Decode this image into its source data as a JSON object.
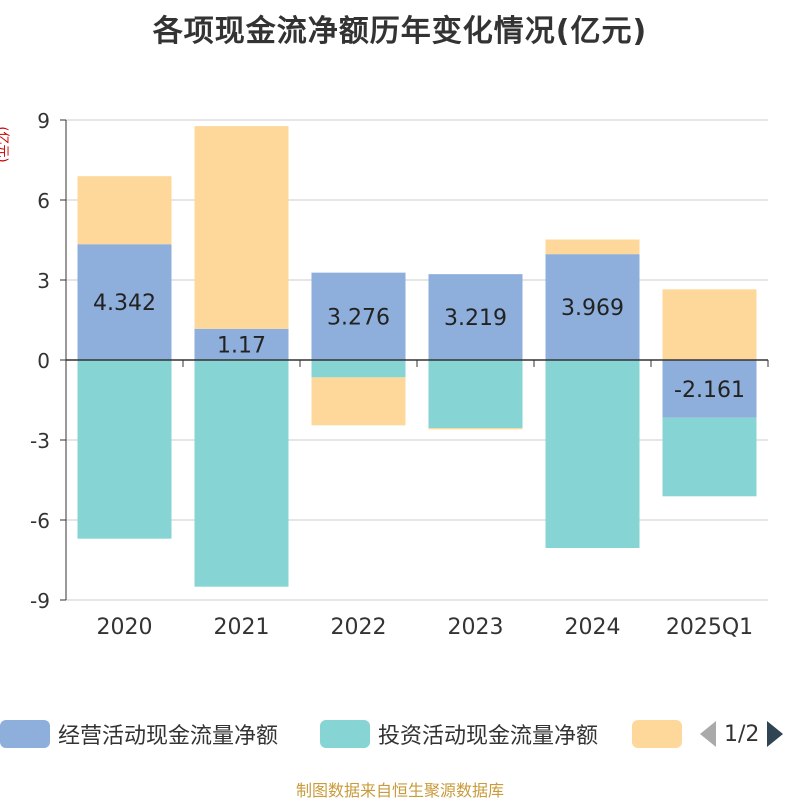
{
  "chart_data": {
    "type": "bar",
    "stacked": true,
    "title": "各项现金流净额历年变化情况(亿元)",
    "ylabel": "(亿元)",
    "ylim": [
      -9,
      9
    ],
    "yticks": [
      9,
      6,
      3,
      0,
      -3,
      -6,
      -9
    ],
    "categories": [
      "2020",
      "2021",
      "2022",
      "2023",
      "2024",
      "2025Q1"
    ],
    "series": [
      {
        "name": "经营活动现金流量净额",
        "color": "#8eaedb",
        "values": [
          4.342,
          1.17,
          3.276,
          3.219,
          3.969,
          -2.161
        ],
        "labels": [
          "4.342",
          "1.17",
          "3.276",
          "3.219",
          "3.969",
          "-2.161"
        ]
      },
      {
        "name": "投资活动现金流量净额",
        "color": "#86d4d4",
        "values": [
          -6.7,
          -8.5,
          -0.65,
          -2.55,
          -7.05,
          -2.95
        ]
      },
      {
        "name": "",
        "color": "#fdd89a",
        "values": [
          2.55,
          7.6,
          -1.8,
          -0.05,
          0.55,
          2.65
        ]
      }
    ],
    "legend_position": "bottom",
    "grid": true
  },
  "legend": {
    "items": [
      {
        "label": "经营活动现金流量净额",
        "color": "#8eaedb"
      },
      {
        "label": "投资活动现金流量净额",
        "color": "#86d4d4"
      },
      {
        "label": "",
        "color": "#fdd89a"
      }
    ],
    "page_text": "1/2"
  },
  "source_text": "制图数据来自恒生聚源数据库"
}
